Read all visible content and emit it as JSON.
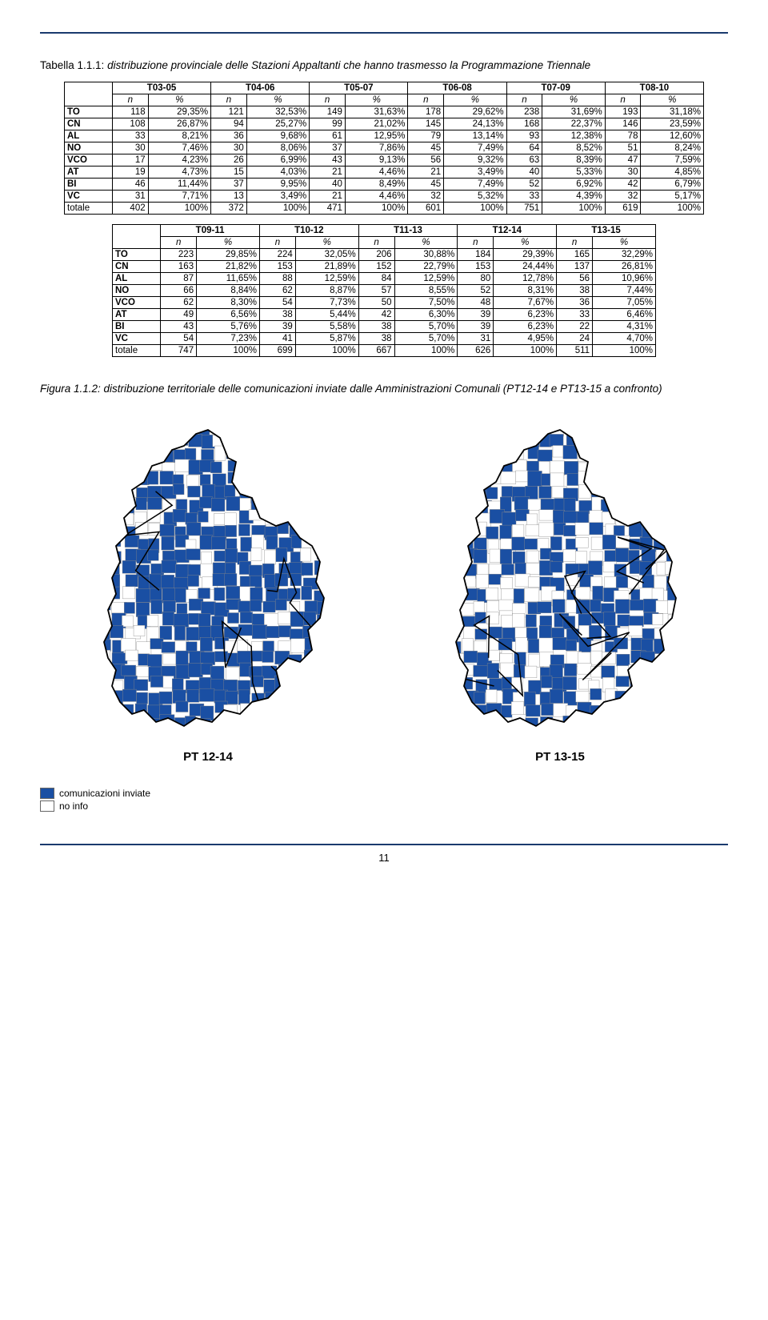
{
  "hr_color": "#1a3a6e",
  "caption1_prefix": "Tabella 1.1.1:",
  "caption1_rest": " distribuzione provinciale delle Stazioni Appaltanti che hanno trasmesso la Programmazione Triennale",
  "table1": {
    "periods": [
      "T03-05",
      "T04-06",
      "T05-07",
      "T06-08",
      "T07-09",
      "T08-10"
    ],
    "subhdr": [
      "n",
      "%"
    ],
    "rows": [
      {
        "lbl": "TO",
        "cells": [
          "118",
          "29,35%",
          "121",
          "32,53%",
          "149",
          "31,63%",
          "178",
          "29,62%",
          "238",
          "31,69%",
          "193",
          "31,18%"
        ]
      },
      {
        "lbl": "CN",
        "cells": [
          "108",
          "26,87%",
          "94",
          "25,27%",
          "99",
          "21,02%",
          "145",
          "24,13%",
          "168",
          "22,37%",
          "146",
          "23,59%"
        ]
      },
      {
        "lbl": "AL",
        "cells": [
          "33",
          "8,21%",
          "36",
          "9,68%",
          "61",
          "12,95%",
          "79",
          "13,14%",
          "93",
          "12,38%",
          "78",
          "12,60%"
        ]
      },
      {
        "lbl": "NO",
        "cells": [
          "30",
          "7,46%",
          "30",
          "8,06%",
          "37",
          "7,86%",
          "45",
          "7,49%",
          "64",
          "8,52%",
          "51",
          "8,24%"
        ]
      },
      {
        "lbl": "VCO",
        "cells": [
          "17",
          "4,23%",
          "26",
          "6,99%",
          "43",
          "9,13%",
          "56",
          "9,32%",
          "63",
          "8,39%",
          "47",
          "7,59%"
        ]
      },
      {
        "lbl": "AT",
        "cells": [
          "19",
          "4,73%",
          "15",
          "4,03%",
          "21",
          "4,46%",
          "21",
          "3,49%",
          "40",
          "5,33%",
          "30",
          "4,85%"
        ]
      },
      {
        "lbl": "BI",
        "cells": [
          "46",
          "11,44%",
          "37",
          "9,95%",
          "40",
          "8,49%",
          "45",
          "7,49%",
          "52",
          "6,92%",
          "42",
          "6,79%"
        ]
      },
      {
        "lbl": "VC",
        "cells": [
          "31",
          "7,71%",
          "13",
          "3,49%",
          "21",
          "4,46%",
          "32",
          "5,32%",
          "33",
          "4,39%",
          "32",
          "5,17%"
        ]
      }
    ],
    "total": {
      "lbl": "totale",
      "cells": [
        "402",
        "100%",
        "372",
        "100%",
        "471",
        "100%",
        "601",
        "100%",
        "751",
        "100%",
        "619",
        "100%"
      ]
    }
  },
  "table2": {
    "periods": [
      "T09-11",
      "T10-12",
      "T11-13",
      "T12-14",
      "T13-15"
    ],
    "subhdr": [
      "n",
      "%"
    ],
    "rows": [
      {
        "lbl": "TO",
        "cells": [
          "223",
          "29,85%",
          "224",
          "32,05%",
          "206",
          "30,88%",
          "184",
          "29,39%",
          "165",
          "32,29%"
        ]
      },
      {
        "lbl": "CN",
        "cells": [
          "163",
          "21,82%",
          "153",
          "21,89%",
          "152",
          "22,79%",
          "153",
          "24,44%",
          "137",
          "26,81%"
        ]
      },
      {
        "lbl": "AL",
        "cells": [
          "87",
          "11,65%",
          "88",
          "12,59%",
          "84",
          "12,59%",
          "80",
          "12,78%",
          "56",
          "10,96%"
        ]
      },
      {
        "lbl": "NO",
        "cells": [
          "66",
          "8,84%",
          "62",
          "8,87%",
          "57",
          "8,55%",
          "52",
          "8,31%",
          "38",
          "7,44%"
        ]
      },
      {
        "lbl": "VCO",
        "cells": [
          "62",
          "8,30%",
          "54",
          "7,73%",
          "50",
          "7,50%",
          "48",
          "7,67%",
          "36",
          "7,05%"
        ]
      },
      {
        "lbl": "AT",
        "cells": [
          "49",
          "6,56%",
          "38",
          "5,44%",
          "42",
          "6,30%",
          "39",
          "6,23%",
          "33",
          "6,46%"
        ]
      },
      {
        "lbl": "BI",
        "cells": [
          "43",
          "5,76%",
          "39",
          "5,58%",
          "38",
          "5,70%",
          "39",
          "6,23%",
          "22",
          "4,31%"
        ]
      },
      {
        "lbl": "VC",
        "cells": [
          "54",
          "7,23%",
          "41",
          "5,87%",
          "38",
          "5,70%",
          "31",
          "4,95%",
          "24",
          "4,70%"
        ]
      }
    ],
    "total": {
      "lbl": "totale",
      "cells": [
        "747",
        "100%",
        "699",
        "100%",
        "667",
        "100%",
        "626",
        "100%",
        "511",
        "100%"
      ]
    }
  },
  "caption2_prefix": "Figura 1.1.2:",
  "caption2_rest": " distribuzione territoriale delle comunicazioni inviate dalle Amministrazioni Comunali (PT12-14 e PT13-15 a confronto)",
  "map": {
    "fill_color": "#1a4fa3",
    "empty_color": "#ffffff",
    "border_color": "#333333",
    "labels": [
      "PT 12-14",
      "PT 13-15"
    ],
    "fill_ratio": [
      0.78,
      0.62
    ]
  },
  "legend": {
    "items": [
      {
        "color": "#1a4fa3",
        "label": "comunicazioni inviate"
      },
      {
        "color": "#ffffff",
        "label": "no info"
      }
    ]
  },
  "page_number": "11"
}
